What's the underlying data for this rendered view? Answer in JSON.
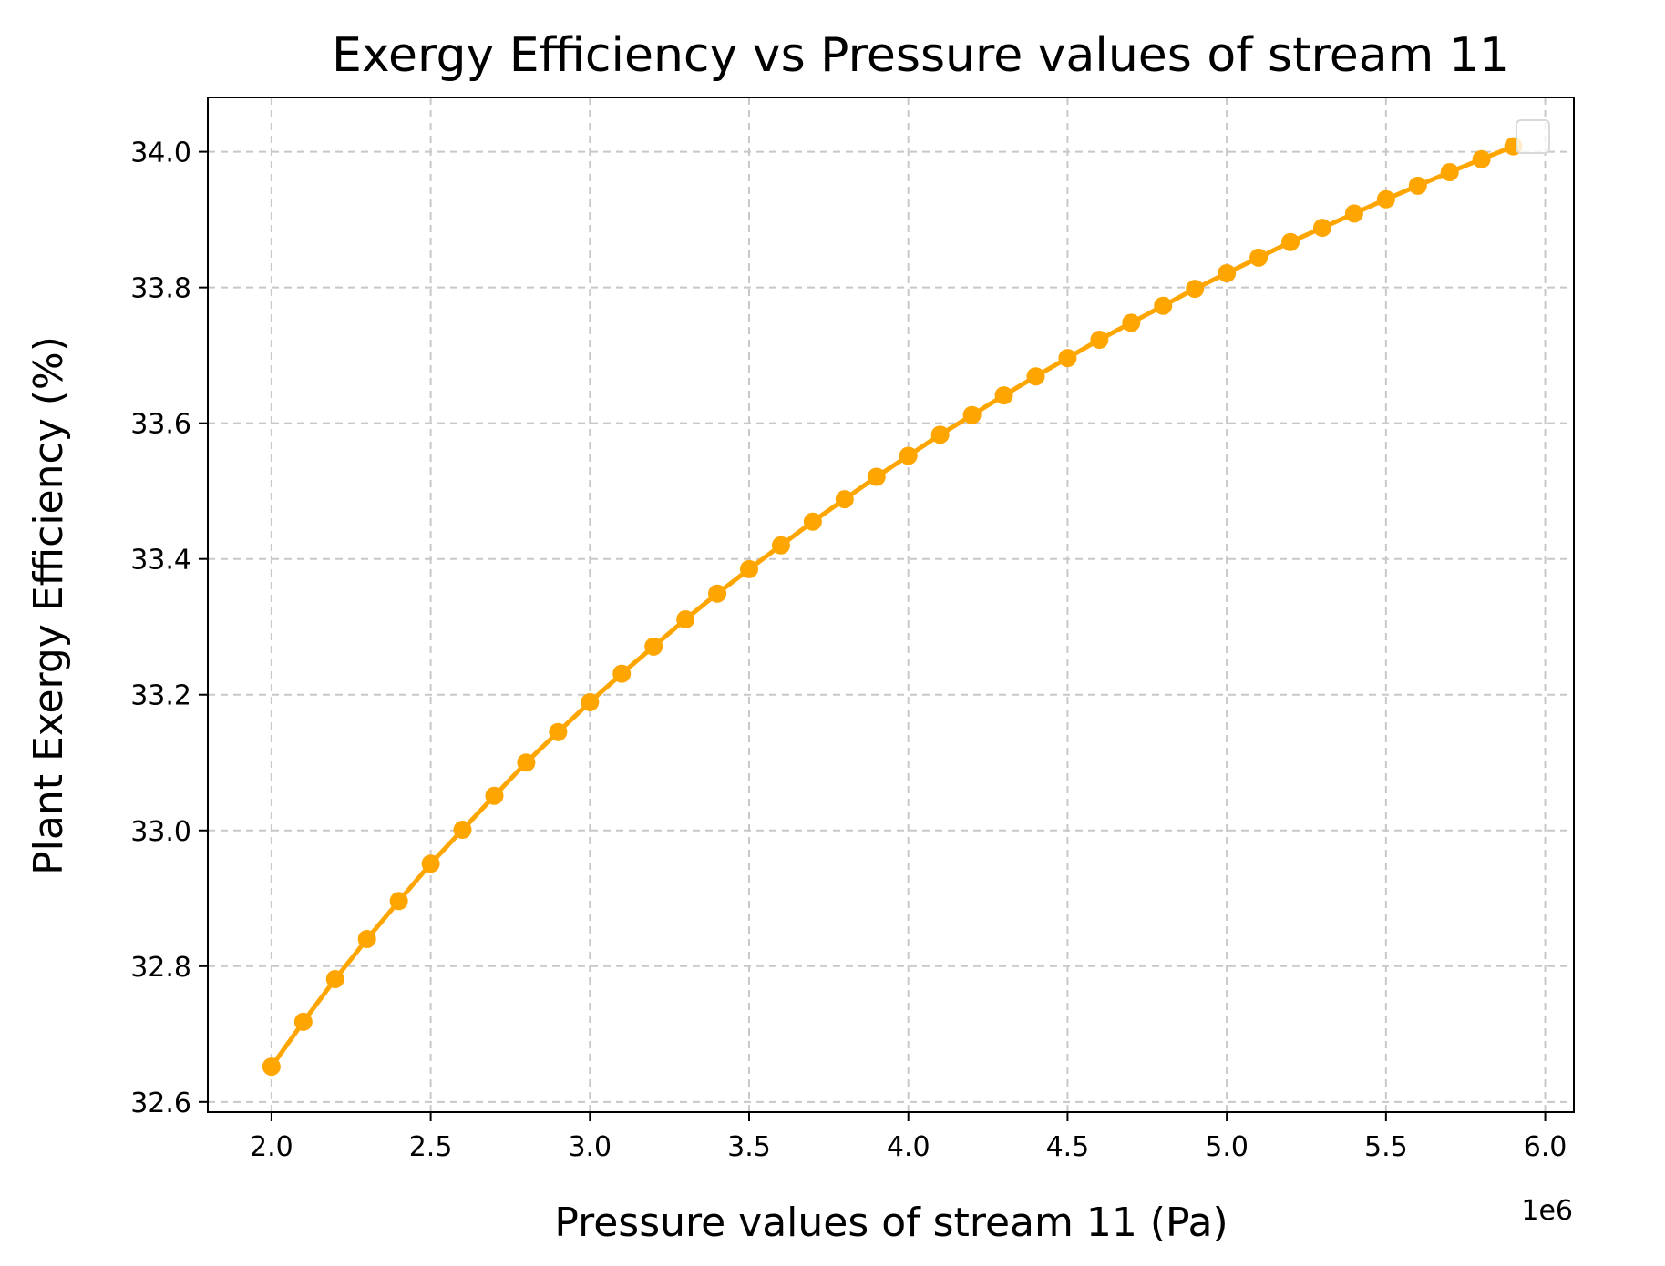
{
  "chart_data": {
    "type": "line",
    "title": "Exergy Efficiency vs Pressure values of stream 11",
    "xlabel": "Pressure values of stream 11 (Pa)",
    "ylabel": "Plant Exergy Efficiency (%)",
    "x_offset_label": "1e6",
    "xlim": [
      1.8,
      6.09
    ],
    "ylim": [
      32.585,
      34.08
    ],
    "xticks": [
      2.0,
      2.5,
      3.0,
      3.5,
      4.0,
      4.5,
      5.0,
      5.5,
      6.0
    ],
    "xtick_labels": [
      "2.0",
      "2.5",
      "3.0",
      "3.5",
      "4.0",
      "4.5",
      "5.0",
      "5.5",
      "6.0"
    ],
    "yticks": [
      32.6,
      32.8,
      33.0,
      33.2,
      33.4,
      33.6,
      33.8,
      34.0
    ],
    "ytick_labels": [
      "32.6",
      "32.8",
      "33.0",
      "33.2",
      "33.4",
      "33.6",
      "33.8",
      "34.0"
    ],
    "grid": true,
    "legend_placement": "upper-right",
    "series": [
      {
        "color": "#FFA500",
        "x": [
          2.0,
          2.1,
          2.2,
          2.3,
          2.4,
          2.5,
          2.6,
          2.7,
          2.8,
          2.9,
          3.0,
          3.1,
          3.2,
          3.3,
          3.4,
          3.5,
          3.6,
          3.7,
          3.8,
          3.9,
          4.0,
          4.1,
          4.2,
          4.3,
          4.4,
          4.5,
          4.6,
          4.7,
          4.8,
          4.9,
          5.0,
          5.1,
          5.2,
          5.3,
          5.4,
          5.5,
          5.6,
          5.7,
          5.8,
          5.9
        ],
        "values": [
          32.652,
          32.718,
          32.781,
          32.84,
          32.896,
          32.951,
          33.001,
          33.051,
          33.1,
          33.145,
          33.189,
          33.231,
          33.271,
          33.311,
          33.349,
          33.385,
          33.42,
          33.455,
          33.488,
          33.521,
          33.552,
          33.583,
          33.612,
          33.641,
          33.669,
          33.696,
          33.723,
          33.748,
          33.773,
          33.798,
          33.821,
          33.844,
          33.867,
          33.888,
          33.909,
          33.93,
          33.95,
          33.97,
          33.989,
          34.008
        ]
      }
    ]
  }
}
